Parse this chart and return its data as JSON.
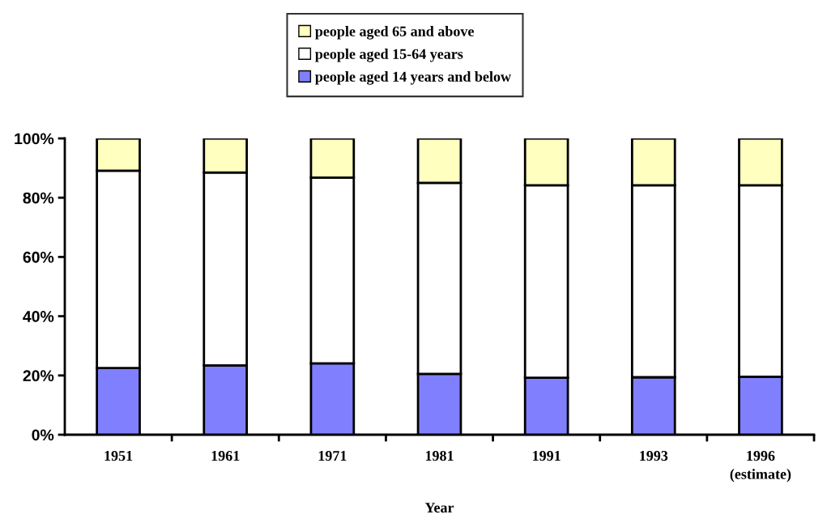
{
  "chart_data": {
    "type": "bar",
    "stacked": true,
    "xlabel": "Year",
    "categories": [
      "1951",
      "1961",
      "1971",
      "1981",
      "1991",
      "1993",
      "1996\n(estimate)"
    ],
    "series": [
      {
        "name": "people aged 14 years and below",
        "color": "#8080ff",
        "values": [
          22.5,
          23.4,
          24.1,
          20.5,
          19.2,
          19.4,
          19.6
        ]
      },
      {
        "name": "people aged 15-64 years",
        "color": "#ffffff",
        "values": [
          66.6,
          65.1,
          62.7,
          64.5,
          65.0,
          64.8,
          64.6
        ]
      },
      {
        "name": "people aged 65 and above",
        "color": "#ffffc0",
        "values": [
          10.9,
          11.5,
          13.2,
          15.0,
          15.8,
          15.8,
          15.8
        ]
      }
    ],
    "ylim": [
      0,
      100
    ],
    "yticks": [
      {
        "value": 0,
        "label": "0%"
      },
      {
        "value": 20,
        "label": "20%"
      },
      {
        "value": 40,
        "label": "40%"
      },
      {
        "value": 60,
        "label": "60%"
      },
      {
        "value": 80,
        "label": "80%"
      },
      {
        "value": 100,
        "label": "100%"
      }
    ],
    "grid": false,
    "legend": "top"
  }
}
